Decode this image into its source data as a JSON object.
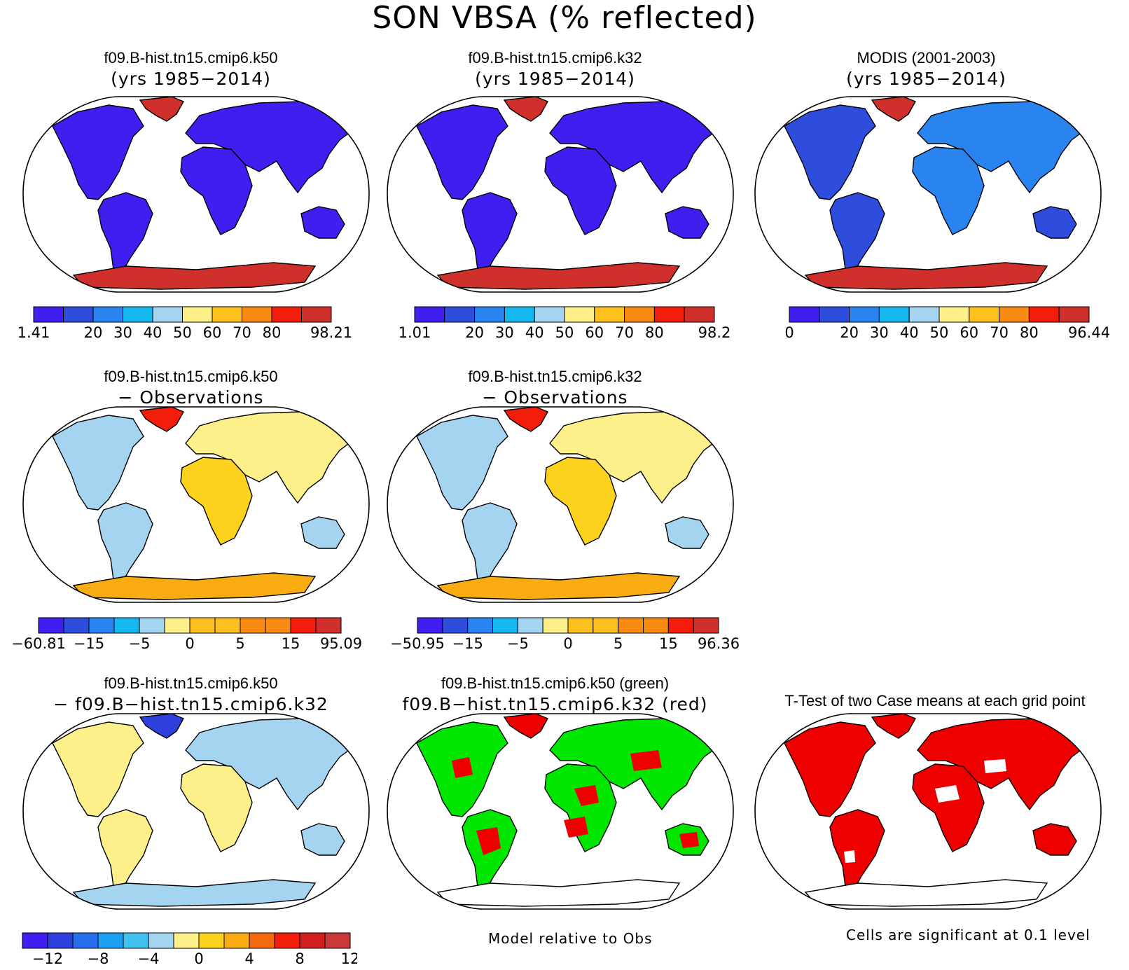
{
  "title": "SON VBSA (% reflected)",
  "palette": {
    "full": [
      "#3f1ff0",
      "#2e4ddc",
      "#2a84ef",
      "#15b9f0",
      "#a4d4f0",
      "#fdf08b",
      "#fcc11e",
      "#f98a12",
      "#f31d0c",
      "#d0302b"
    ],
    "diff": [
      "#3f1ff0",
      "#2e40dc",
      "#2a6ef0",
      "#1ea0f2",
      "#42c0ee",
      "#a4d4f0",
      "#fdf08b",
      "#fcd21e",
      "#f9ac12",
      "#f66a0f",
      "#f31d0c",
      "#d02020",
      "#c83a3a"
    ],
    "sig_case1": "#00e600",
    "sig_case2": "#ee0000",
    "ttest": "#ee0000",
    "map_outline": "#000000"
  },
  "panels": [
    {
      "id": "case1",
      "title": "f09.B-hist.tn15.cmip6.k50",
      "subtitle": "(yrs 1985−2014)",
      "style": "full"
    },
    {
      "id": "case2",
      "title": "f09.B-hist.tn15.cmip6.k32",
      "subtitle": "(yrs 1985−2014)",
      "style": "full"
    },
    {
      "id": "obs",
      "title": "MODIS (2001-2003)",
      "subtitle": "(yrs 1985−2014)",
      "style": "full_obs"
    },
    {
      "id": "case1_obs",
      "title": "f09.B-hist.tn15.cmip6.k50",
      "subtitle": "− Observations",
      "style": "anom"
    },
    {
      "id": "case2_obs",
      "title": "f09.B-hist.tn15.cmip6.k32",
      "subtitle": "− Observations",
      "style": "anom"
    },
    {
      "id": "case1_case2",
      "title": "f09.B-hist.tn15.cmip6.k50",
      "subtitle": "− f09.B−hist.tn15.cmip6.k32",
      "style": "diff"
    },
    {
      "id": "sig",
      "title": "f09.B-hist.tn15.cmip6.k50 (green)",
      "subtitle": "f09.B−hist.tn15.cmip6.k32 (red)",
      "style": "sig"
    },
    {
      "id": "ttest",
      "title": "T-Test of two Case means at each grid point",
      "subtitle": "",
      "style": "ttest"
    }
  ],
  "colorbars": [
    {
      "id": "cb_case1",
      "labels": [
        "1.41",
        "20",
        "30",
        "40",
        "50",
        "60",
        "70",
        "80",
        "98.21"
      ],
      "positions": [
        0,
        2,
        3,
        4,
        5,
        6,
        7,
        8,
        10
      ]
    },
    {
      "id": "cb_case2",
      "labels": [
        "1.01",
        "20",
        "30",
        "40",
        "50",
        "60",
        "70",
        "80",
        "98.2"
      ],
      "positions": [
        0,
        2,
        3,
        4,
        5,
        6,
        7,
        8,
        10
      ]
    },
    {
      "id": "cb_obs",
      "labels": [
        "0",
        "20",
        "30",
        "40",
        "50",
        "60",
        "70",
        "80",
        "96.44"
      ],
      "positions": [
        0,
        2,
        3,
        4,
        5,
        6,
        7,
        8,
        10
      ]
    },
    {
      "id": "cb_anom1",
      "labels": [
        "−60.81",
        "−15",
        "−5",
        "0",
        "5",
        "15",
        "95.09"
      ],
      "positions": [
        0,
        2,
        4,
        6,
        8,
        10,
        12
      ]
    },
    {
      "id": "cb_anom2",
      "labels": [
        "−50.95",
        "−15",
        "−5",
        "0",
        "5",
        "15",
        "96.36"
      ],
      "positions": [
        0,
        2,
        4,
        6,
        8,
        10,
        12
      ]
    },
    {
      "id": "cb_diff",
      "labels": [
        "−12",
        "−8",
        "−4",
        "0",
        "4",
        "8",
        "12"
      ],
      "positions": [
        1,
        3,
        5,
        7,
        9,
        11,
        13
      ]
    }
  ],
  "footer": {
    "model_relative": "Model relative to Obs",
    "significance": "Cells are significant at 0.1 level"
  }
}
